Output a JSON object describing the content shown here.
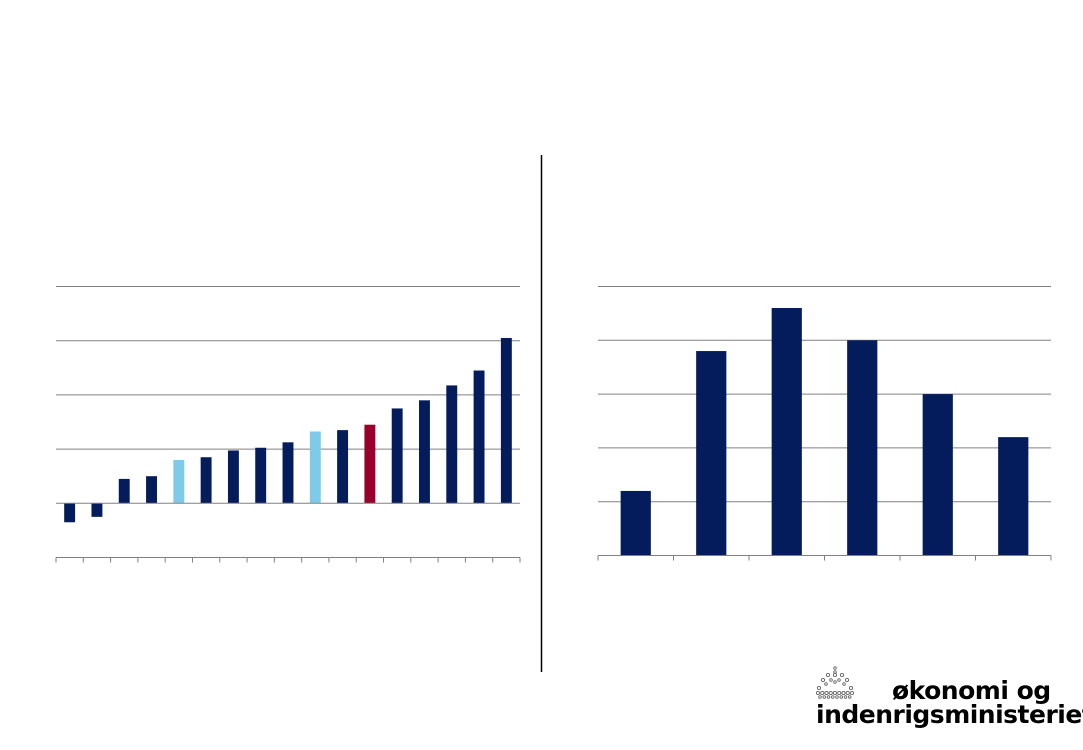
{
  "colors": {
    "primary": "#041c5c",
    "highlight_light": "#7dcbe8",
    "highlight_red": "#98002e",
    "grid": "#808080",
    "divider": "#000000",
    "logo": "#6cc3a8"
  },
  "logo": {
    "line1": "økonomi og",
    "line2": "indenrigsministeriet",
    "icon": "crown-icon"
  },
  "chart_data": [
    {
      "type": "bar",
      "title": "",
      "xlabel": "",
      "ylabel": "",
      "ylim": [
        -2,
        8
      ],
      "grid": true,
      "categories": [
        "",
        "",
        "",
        "",
        "",
        "",
        "",
        "",
        "",
        "",
        "",
        "",
        "",
        "",
        "",
        "",
        ""
      ],
      "values": [
        -0.7,
        -0.5,
        0.9,
        1.0,
        1.6,
        1.7,
        1.95,
        2.05,
        2.25,
        2.65,
        2.7,
        2.9,
        3.5,
        3.8,
        4.35,
        4.9,
        6.1
      ],
      "bar_colors": [
        "primary",
        "primary",
        "primary",
        "primary",
        "highlight_light",
        "primary",
        "primary",
        "primary",
        "primary",
        "highlight_light",
        "primary",
        "highlight_red",
        "primary",
        "primary",
        "primary",
        "primary",
        "primary"
      ]
    },
    {
      "type": "bar",
      "title": "",
      "xlabel": "",
      "ylabel": "",
      "ylim": [
        0,
        5
      ],
      "grid": true,
      "categories": [
        "",
        "",
        "",
        "",
        "",
        ""
      ],
      "values": [
        1.2,
        3.8,
        4.6,
        4.0,
        3.0,
        2.2
      ],
      "bar_colors": [
        "primary",
        "primary",
        "primary",
        "primary",
        "primary",
        "primary"
      ]
    }
  ]
}
